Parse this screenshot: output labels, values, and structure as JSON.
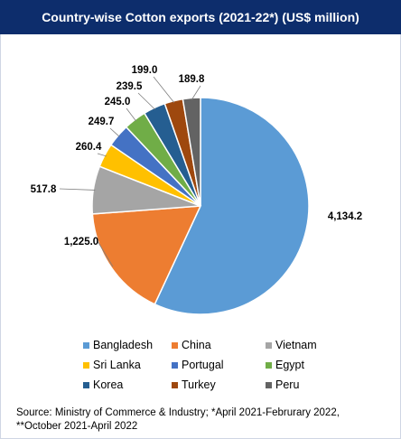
{
  "header": {
    "title": "Country-wise Cotton exports (2021-22*) (US$ million)"
  },
  "chart_data": {
    "type": "pie",
    "title": "Country-wise Cotton exports (2021-22*) (US$ million)",
    "start_angle_deg": 0,
    "direction": "clockwise",
    "legend_position": "bottom",
    "slices": [
      {
        "name": "Bangladesh",
        "value": 4134.2,
        "label": "4,134.2",
        "color": "#5b9bd5"
      },
      {
        "name": "China",
        "value": 1225.0,
        "label": "1,225.0",
        "color": "#ed7d31"
      },
      {
        "name": "Vietnam",
        "value": 517.8,
        "label": "517.8",
        "color": "#a5a5a5"
      },
      {
        "name": "Sri Lanka",
        "value": 260.4,
        "label": "260.4",
        "color": "#ffc000"
      },
      {
        "name": "Portugal",
        "value": 249.7,
        "label": "249.7",
        "color": "#4472c4"
      },
      {
        "name": "Egypt",
        "value": 245.0,
        "label": "245.0",
        "color": "#70ad47"
      },
      {
        "name": "Korea",
        "value": 239.5,
        "label": "239.5",
        "color": "#255e91"
      },
      {
        "name": "Turkey",
        "value": 199.0,
        "label": "199.0",
        "color": "#9e480e"
      },
      {
        "name": "Peru",
        "value": 189.8,
        "label": "189.8",
        "color": "#636363"
      }
    ]
  },
  "footer": {
    "source_line1": "Source: Ministry of Commerce & Industry; *April 2021-Februrary 2022,",
    "source_line2": "**October 2021-April 2022"
  }
}
